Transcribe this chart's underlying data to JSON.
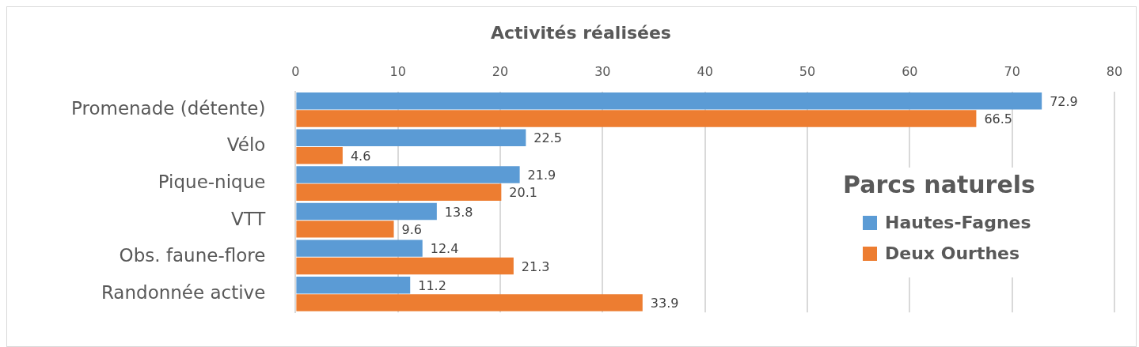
{
  "chart_data": {
    "type": "bar",
    "orientation": "horizontal",
    "title": "Activités réalisées",
    "legend_title": "Parcs naturels",
    "categories": [
      "Promenade (détente)",
      "Vélo",
      "Pique-nique",
      "VTT",
      "Obs. faune-flore",
      "Randonnée active"
    ],
    "series": [
      {
        "name": "Hautes-Fagnes",
        "color": "#5b9bd5",
        "values": [
          72.9,
          22.5,
          21.9,
          13.8,
          12.4,
          11.2
        ]
      },
      {
        "name": "Deux Ourthes",
        "color": "#ed7d31",
        "values": [
          66.5,
          4.6,
          20.1,
          9.6,
          21.3,
          33.9
        ]
      }
    ],
    "xlim": [
      0,
      80
    ],
    "xticks": [
      0,
      10,
      20,
      30,
      40,
      50,
      60,
      70,
      80
    ],
    "grid": "x",
    "legend": "right",
    "data_labels": true
  }
}
